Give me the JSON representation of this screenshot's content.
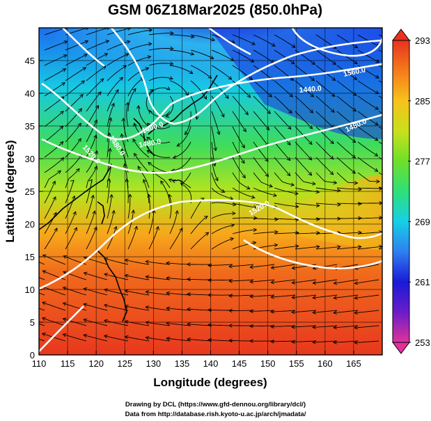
{
  "title": "GSM 06Z18Mar2025 (850.0hPa)",
  "xlabel": "Longitude (degrees)",
  "ylabel": "Latitude  (degrees)",
  "credits": [
    "Drawing by DCL (https://www.gfd-dennou.org/library/dcl/)",
    "Data from http://database.rish.kyoto-u.ac.jp/arch/jmadata/"
  ],
  "map": {
    "lon_range": [
      110,
      170
    ],
    "lat_range": [
      0,
      50
    ],
    "x_ticks": [
      110,
      115,
      120,
      125,
      130,
      135,
      140,
      145,
      150,
      155,
      160,
      165
    ],
    "y_ticks": [
      0,
      5,
      10,
      15,
      20,
      25,
      30,
      35,
      40,
      45
    ],
    "field": "temperature (K)",
    "contour_field": "geopotential height",
    "contour_labels": [
      "1520.0",
      "1480.0",
      "1480.0",
      "1400.0",
      "1440.0",
      "1560.0",
      "1520.0",
      "1480.0"
    ],
    "vectors": "streamlines"
  },
  "colorbar": {
    "min": 253,
    "max": 293,
    "tick_labels": [
      "293",
      "285",
      "277",
      "269",
      "261",
      "253"
    ],
    "colors": [
      "#e0329a",
      "#6a1cc9",
      "#1a1ad8",
      "#2f7ff0",
      "#17cfe6",
      "#2fe07a",
      "#6ee02a",
      "#c8e01c",
      "#f7c21b",
      "#f57a1c",
      "#e8321e"
    ]
  }
}
